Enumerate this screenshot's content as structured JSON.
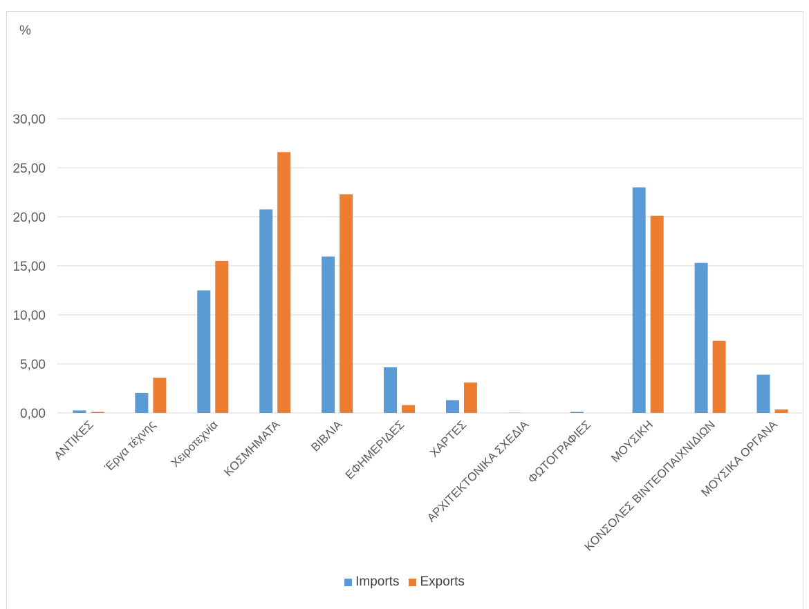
{
  "chart_data": {
    "type": "bar",
    "ylabel": "%",
    "ylim": [
      0,
      30
    ],
    "yticks": [
      "0,00",
      "5,00",
      "10,00",
      "15,00",
      "20,00",
      "25,00",
      "30,00"
    ],
    "ytick_values": [
      0,
      5,
      10,
      15,
      20,
      25,
      30
    ],
    "grid": true,
    "legend_position": "bottom",
    "categories": [
      "ΑΝΤΙΚΕΣ",
      "Έργα τέχνης",
      "Χειροτεχνία",
      "ΚΟΣΜΗΜΑΤΑ",
      "ΒΙΒΛΙΑ",
      "ΕΦΗΜΕΡΙΔΕΣ",
      "ΧΑΡΤΕΣ",
      "ΑΡΧΙΤΕΚΤΟΝΙΚΑ ΣΧΕΔΙΑ",
      "ΦΩΤΟΓΡΑΦΙΕΣ",
      "ΜΟΥΣΙΚΗ",
      "ΚΟΝΣΟΛΕΣ ΒΙΝΤΕΟΠΑΙΧΝΙΔΙΩΝ",
      "ΜΟΥΣΙΚΑ ΟΡΓΑΝΑ"
    ],
    "series": [
      {
        "name": "Imports",
        "color": "#5b9bd5",
        "values": [
          0.25,
          2.05,
          12.5,
          20.75,
          15.95,
          4.65,
          1.3,
          0.02,
          0.1,
          23.0,
          15.3,
          3.9
        ]
      },
      {
        "name": "Exports",
        "color": "#ed7d31",
        "values": [
          0.1,
          3.6,
          15.5,
          26.6,
          22.3,
          0.8,
          3.1,
          0.0,
          0.0,
          20.1,
          7.35,
          0.35
        ]
      }
    ]
  }
}
